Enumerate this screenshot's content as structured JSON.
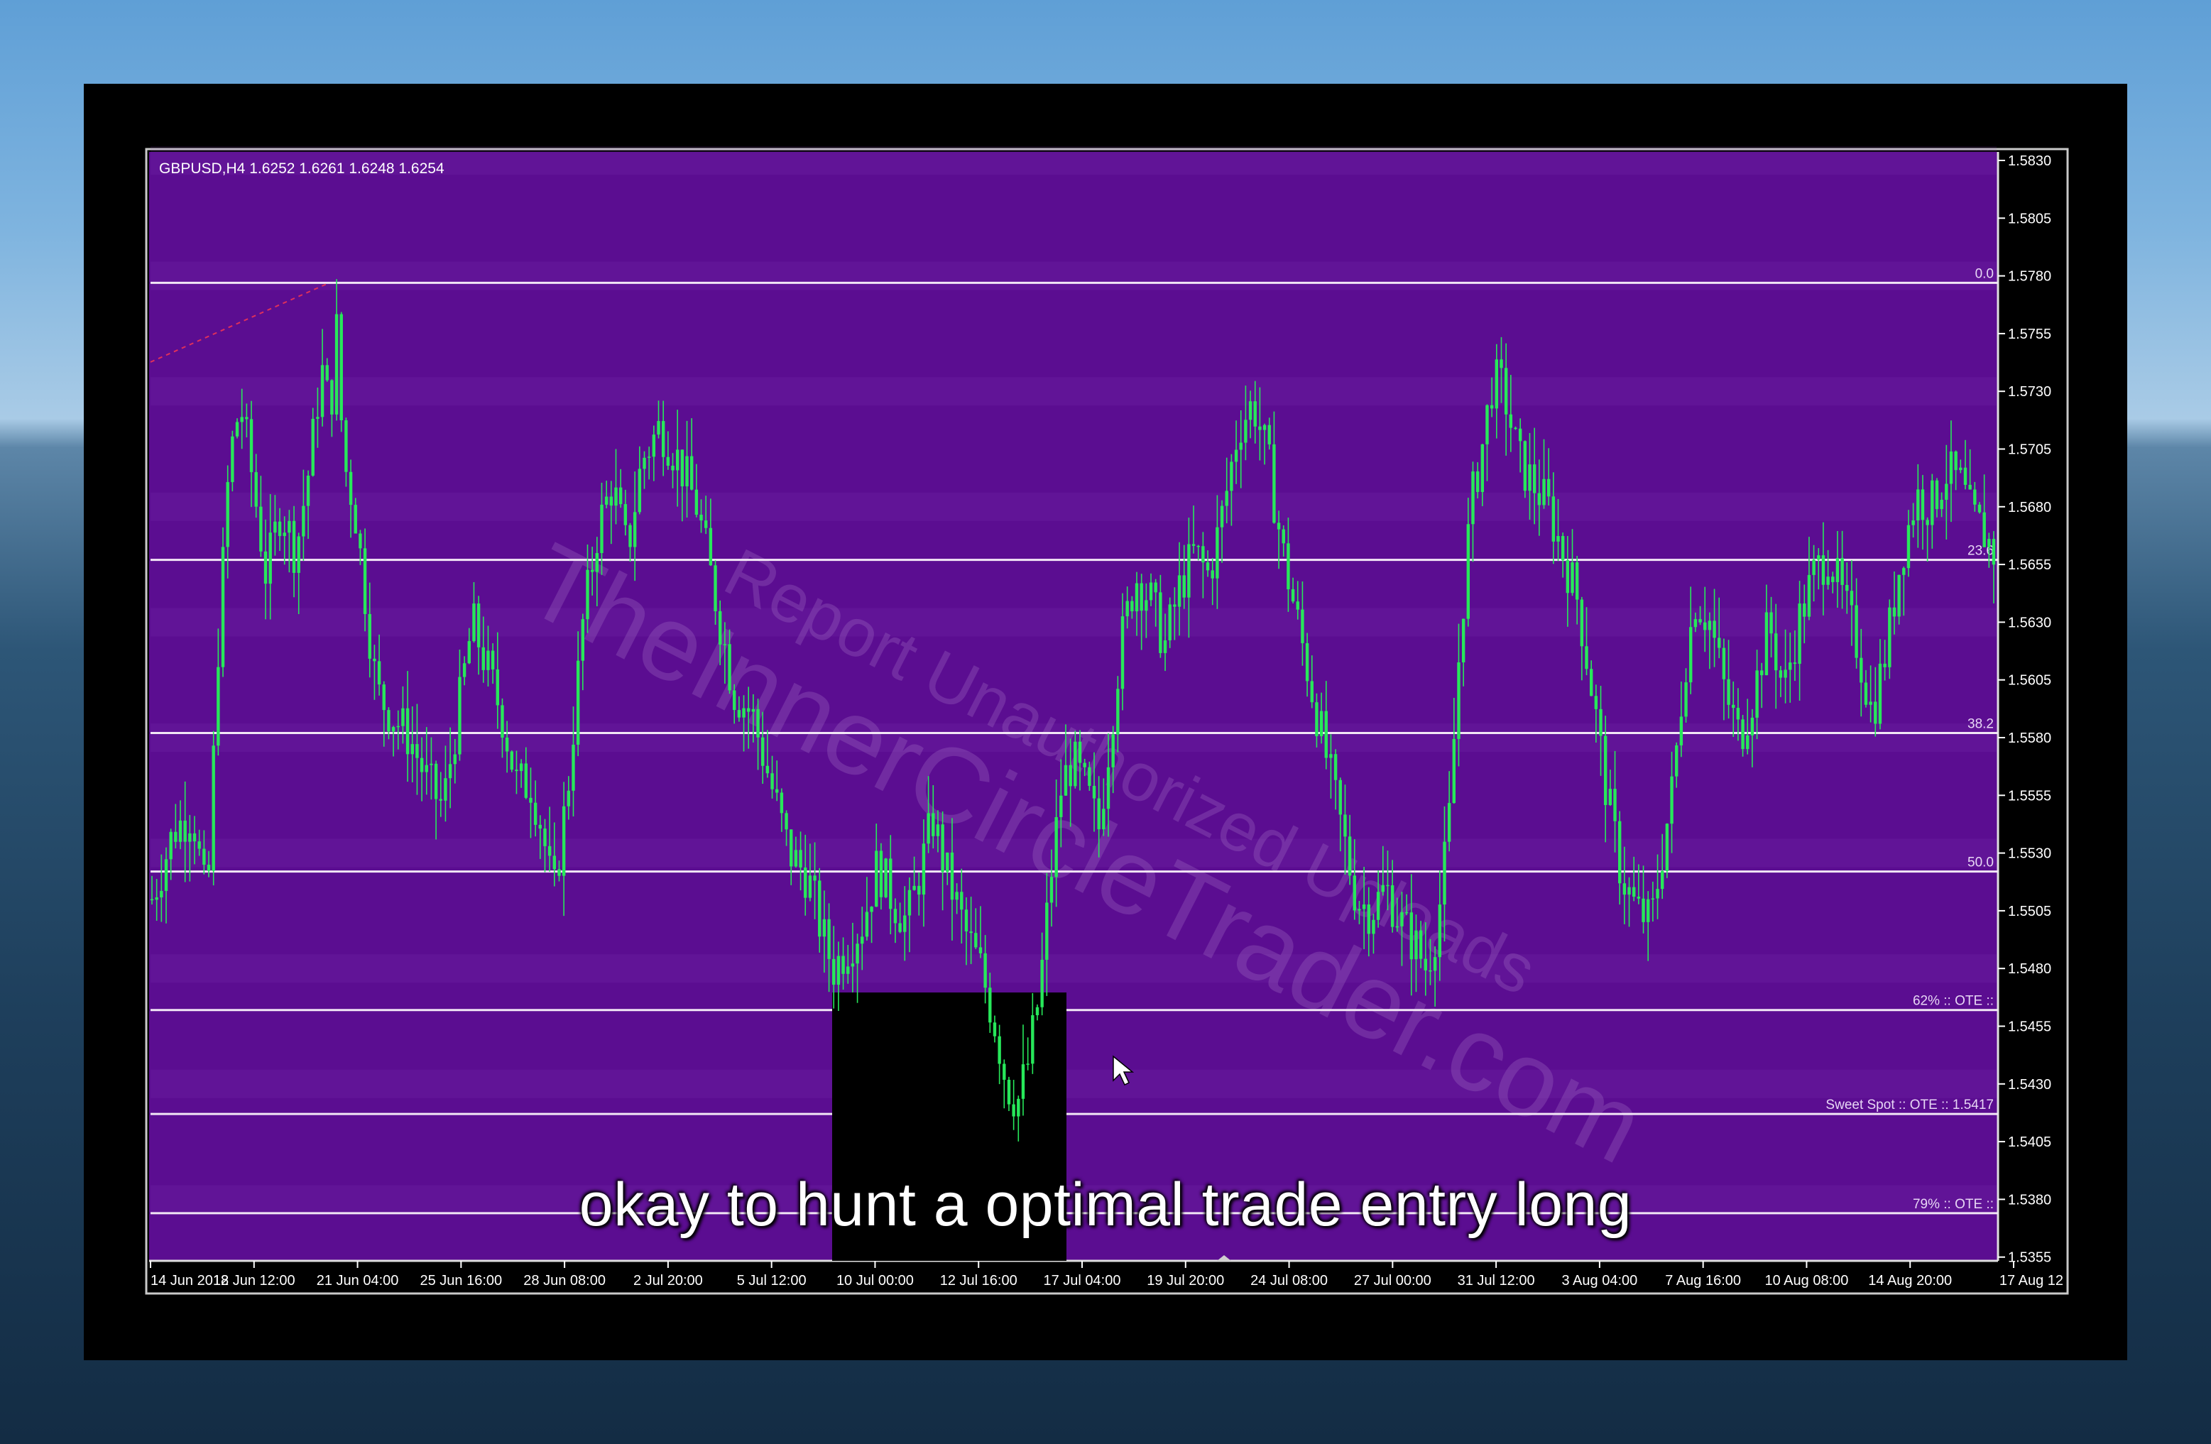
{
  "subtitle": "okay to hunt a optimal trade entry long",
  "chart_header": "GBPUSD,H4  1.6252 1.6261 1.6248 1.6254",
  "watermark": {
    "line1": "Report Unauthorized Uploads",
    "line2": "TheInnerCircleTrader.com"
  },
  "colors": {
    "background": "#5b0d91",
    "candle": "#27e85a",
    "level_line": "#f2e6f6",
    "highlight_box": "#000000"
  },
  "chart_data": {
    "type": "candlestick",
    "symbol": "GBPUSD",
    "timeframe": "H4",
    "ylim": [
      1.5343,
      1.5838
    ],
    "y_ticks": [
      "1.5830",
      "1.5805",
      "1.5780",
      "1.5755",
      "1.5730",
      "1.5705",
      "1.5680",
      "1.5655",
      "1.5630",
      "1.5605",
      "1.5580",
      "1.5555",
      "1.5530",
      "1.5505",
      "1.5480",
      "1.5455",
      "1.5430",
      "1.5405",
      "1.5380",
      "1.5355"
    ],
    "x_ticks": [
      "14 Jun 2012",
      "18 Jun 12:00",
      "21 Jun 04:00",
      "25 Jun 16:00",
      "28 Jun 08:00",
      "2 Jul 20:00",
      "5 Jul 12:00",
      "10 Jul 00:00",
      "12 Jul 16:00",
      "17 Jul 04:00",
      "19 Jul 20:00",
      "24 Jul 08:00",
      "27 Jul 00:00",
      "31 Jul 12:00",
      "3 Aug 04:00",
      "7 Aug 16:00",
      "10 Aug 08:00",
      "14 Aug 20:00",
      "17 Aug 12"
    ],
    "fib_levels": [
      {
        "label": "0.0",
        "price": 1.5777
      },
      {
        "label": "23.6",
        "price": 1.5657
      },
      {
        "label": "38.2",
        "price": 1.5582
      },
      {
        "label": "50.0",
        "price": 1.5522
      },
      {
        "label": "62% :: OTE ::",
        "price": 1.5462
      },
      {
        "label": "Sweet Spot :: OTE ::  1.5417",
        "price": 1.5417
      },
      {
        "label": "79% :: OTE ::",
        "price": 1.5374
      }
    ],
    "close_path": [
      [
        0,
        1.551
      ],
      [
        0.012,
        1.554
      ],
      [
        0.022,
        1.5548
      ],
      [
        0.03,
        1.5505
      ],
      [
        0.036,
        1.562
      ],
      [
        0.042,
        1.57
      ],
      [
        0.048,
        1.5725
      ],
      [
        0.055,
        1.569
      ],
      [
        0.062,
        1.565
      ],
      [
        0.07,
        1.568
      ],
      [
        0.078,
        1.566
      ],
      [
        0.086,
        1.57
      ],
      [
        0.092,
        1.574
      ],
      [
        0.097,
        1.572
      ],
      [
        0.1,
        1.576
      ],
      [
        0.104,
        1.57
      ],
      [
        0.11,
        1.568
      ],
      [
        0.116,
        1.564
      ],
      [
        0.122,
        1.56
      ],
      [
        0.13,
        1.559
      ],
      [
        0.14,
        1.558
      ],
      [
        0.15,
        1.556
      ],
      [
        0.158,
        1.555
      ],
      [
        0.166,
        1.559
      ],
      [
        0.174,
        1.563
      ],
      [
        0.182,
        1.561
      ],
      [
        0.19,
        1.559
      ],
      [
        0.198,
        1.556
      ],
      [
        0.206,
        1.556
      ],
      [
        0.212,
        1.554
      ],
      [
        0.218,
        1.551
      ],
      [
        0.226,
        1.556
      ],
      [
        0.234,
        1.563
      ],
      [
        0.242,
        1.567
      ],
      [
        0.25,
        1.569
      ],
      [
        0.258,
        1.566
      ],
      [
        0.266,
        1.57
      ],
      [
        0.276,
        1.5715
      ],
      [
        0.286,
        1.57
      ],
      [
        0.296,
        1.568
      ],
      [
        0.306,
        1.564
      ],
      [
        0.316,
        1.56
      ],
      [
        0.326,
        1.559
      ],
      [
        0.336,
        1.556
      ],
      [
        0.346,
        1.553
      ],
      [
        0.356,
        1.552
      ],
      [
        0.364,
        1.5495
      ],
      [
        0.37,
        1.548
      ],
      [
        0.378,
        1.549
      ],
      [
        0.386,
        1.55
      ],
      [
        0.394,
        1.5525
      ],
      [
        0.402,
        1.551
      ],
      [
        0.41,
        1.55
      ],
      [
        0.418,
        1.5525
      ],
      [
        0.424,
        1.5545
      ],
      [
        0.43,
        1.5525
      ],
      [
        0.436,
        1.551
      ],
      [
        0.442,
        1.5495
      ],
      [
        0.45,
        1.548
      ],
      [
        0.458,
        1.5455
      ],
      [
        0.464,
        1.543
      ],
      [
        0.47,
        1.5422
      ],
      [
        0.476,
        1.544
      ],
      [
        0.482,
        1.547
      ],
      [
        0.488,
        1.552
      ],
      [
        0.494,
        1.556
      ],
      [
        0.5,
        1.557
      ],
      [
        0.508,
        1.5555
      ],
      [
        0.514,
        1.554
      ],
      [
        0.52,
        1.558
      ],
      [
        0.526,
        1.562
      ],
      [
        0.534,
        1.565
      ],
      [
        0.542,
        1.564
      ],
      [
        0.55,
        1.562
      ],
      [
        0.558,
        1.5645
      ],
      [
        0.566,
        1.566
      ],
      [
        0.574,
        1.565
      ],
      [
        0.582,
        1.568
      ],
      [
        0.59,
        1.5715
      ],
      [
        0.598,
        1.5725
      ],
      [
        0.606,
        1.57
      ],
      [
        0.614,
        1.566
      ],
      [
        0.622,
        1.563
      ],
      [
        0.63,
        1.56
      ],
      [
        0.638,
        1.557
      ],
      [
        0.646,
        1.554
      ],
      [
        0.654,
        1.551
      ],
      [
        0.662,
        1.5505
      ],
      [
        0.67,
        1.5515
      ],
      [
        0.678,
        1.55
      ],
      [
        0.686,
        1.549
      ],
      [
        0.692,
        1.548
      ],
      [
        0.698,
        1.55
      ],
      [
        0.704,
        1.554
      ],
      [
        0.71,
        1.562
      ],
      [
        0.716,
        1.568
      ],
      [
        0.722,
        1.5705
      ],
      [
        0.728,
        1.5735
      ],
      [
        0.734,
        1.573
      ],
      [
        0.742,
        1.57
      ],
      [
        0.75,
        1.569
      ],
      [
        0.758,
        1.568
      ],
      [
        0.766,
        1.566
      ],
      [
        0.774,
        1.564
      ],
      [
        0.782,
        1.56
      ],
      [
        0.79,
        1.5555
      ],
      [
        0.798,
        1.552
      ],
      [
        0.806,
        1.5505
      ],
      [
        0.814,
        1.55
      ],
      [
        0.82,
        1.553
      ],
      [
        0.826,
        1.556
      ],
      [
        0.832,
        1.561
      ],
      [
        0.838,
        1.564
      ],
      [
        0.846,
        1.563
      ],
      [
        0.854,
        1.56
      ],
      [
        0.862,
        1.558
      ],
      [
        0.87,
        1.56
      ],
      [
        0.878,
        1.563
      ],
      [
        0.886,
        1.56
      ],
      [
        0.894,
        1.563
      ],
      [
        0.902,
        1.565
      ],
      [
        0.91,
        1.566
      ],
      [
        0.918,
        1.564
      ],
      [
        0.926,
        1.562
      ],
      [
        0.934,
        1.559
      ],
      [
        0.942,
        1.562
      ],
      [
        0.95,
        1.566
      ],
      [
        0.958,
        1.5685
      ],
      [
        0.966,
        1.568
      ],
      [
        0.974,
        1.5695
      ],
      [
        0.982,
        1.569
      ],
      [
        0.988,
        1.5675
      ],
      [
        0.994,
        1.567
      ],
      [
        1.0,
        1.566
      ]
    ]
  }
}
